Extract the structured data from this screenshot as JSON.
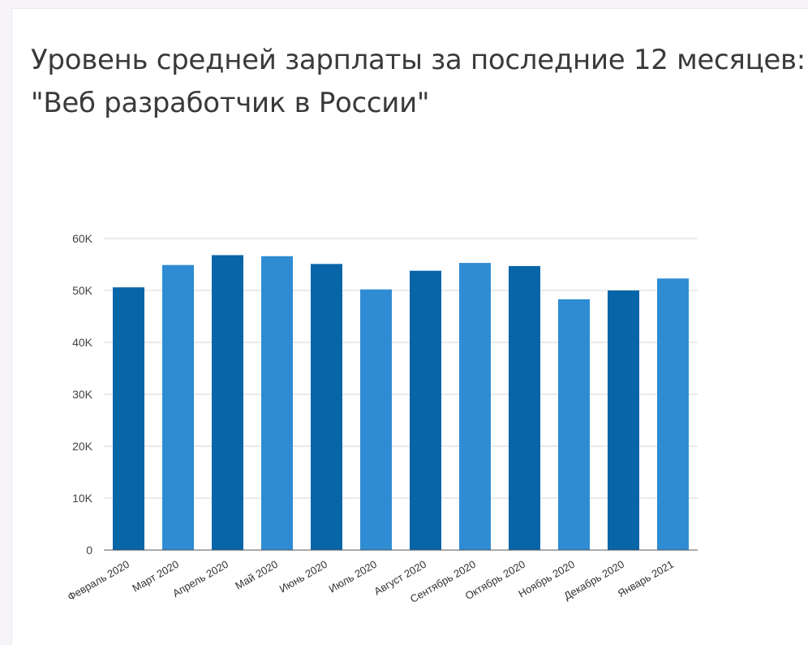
{
  "chart_data": {
    "type": "bar",
    "title_line1": "Уровень средней зарплаты за последние 12 месяцев:",
    "title_line2": "\"Веб разработчик в России\"",
    "categories": [
      "Февраль 2020",
      "Март 2020",
      "Апрель 2020",
      "Май 2020",
      "Июнь 2020",
      "Июль 2020",
      "Август 2020",
      "Сентябрь 2020",
      "Октябрь 2020",
      "Ноябрь 2020",
      "Декабрь 2020",
      "Январь 2021"
    ],
    "values": [
      50600,
      54900,
      56800,
      56600,
      55100,
      50200,
      53800,
      55300,
      54700,
      48300,
      50000,
      52300
    ],
    "colors": [
      "#0865a8",
      "#2f8cd3",
      "#0865a8",
      "#2f8cd3",
      "#0865a8",
      "#2f8cd3",
      "#0865a8",
      "#2f8cd3",
      "#0865a8",
      "#2f8cd3",
      "#0865a8",
      "#2f8cd3"
    ],
    "ylim": [
      0,
      60000
    ],
    "yticks": [
      0,
      10000,
      20000,
      30000,
      40000,
      50000,
      60000
    ],
    "ytick_labels": [
      "0",
      "10K",
      "20K",
      "30K",
      "40K",
      "50K",
      "60K"
    ],
    "grid": true,
    "xlabel": "",
    "ylabel": ""
  }
}
